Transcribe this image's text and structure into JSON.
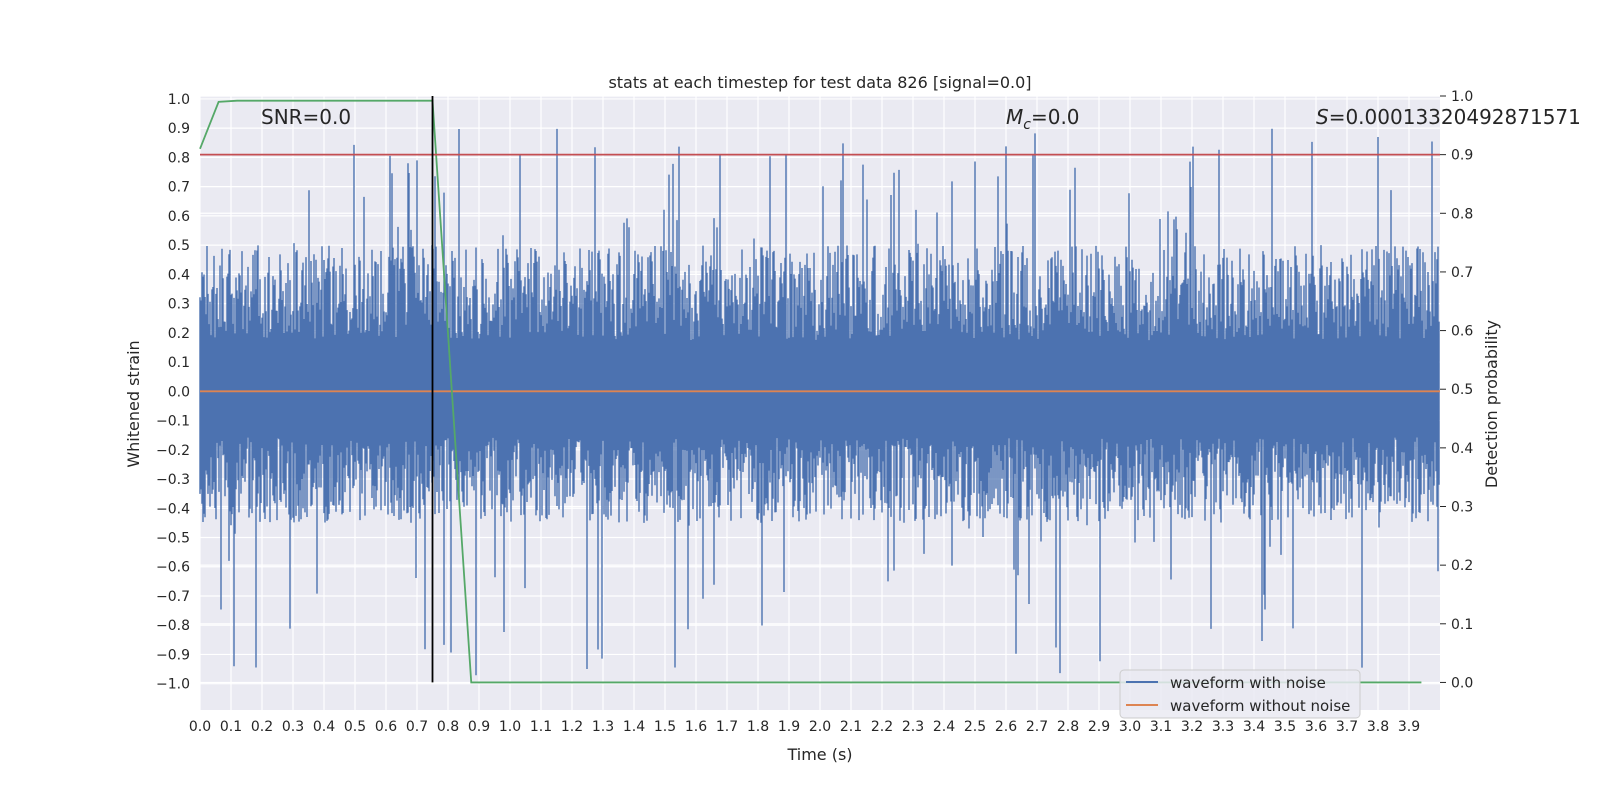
{
  "chart_data": {
    "type": "line",
    "title": "stats at each timestep for test data 826 [signal=0.0]",
    "xlabel": "Time (s)",
    "ylabel": "Whitened strain",
    "y2label": "Detection probability",
    "xlim": [
      0.0,
      4.0
    ],
    "ylim": [
      -1.09,
      1.01
    ],
    "y2lim": [
      -0.047,
      1.0
    ],
    "x_ticks": [
      "0.0",
      "0.1",
      "0.2",
      "0.3",
      "0.4",
      "0.5",
      "0.6",
      "0.7",
      "0.8",
      "0.9",
      "1.0",
      "1.1",
      "1.2",
      "1.3",
      "1.4",
      "1.5",
      "1.6",
      "1.7",
      "1.8",
      "1.9",
      "2.0",
      "2.1",
      "2.2",
      "2.3",
      "2.4",
      "2.5",
      "2.6",
      "2.7",
      "2.8",
      "2.9",
      "3.0",
      "3.1",
      "3.2",
      "3.3",
      "3.4",
      "3.5",
      "3.6",
      "3.7",
      "3.8",
      "3.9"
    ],
    "y_ticks": [
      "1.0",
      "0.9",
      "0.8",
      "0.7",
      "0.6",
      "0.5",
      "0.4",
      "0.3",
      "0.2",
      "0.1",
      "0.0",
      "−0.1",
      "−0.2",
      "−0.3",
      "−0.4",
      "−0.5",
      "−0.6",
      "−0.7",
      "−0.8",
      "−0.9",
      "−1.0"
    ],
    "y2_ticks": [
      "1.0",
      "0.9",
      "0.8",
      "0.7",
      "0.6",
      "0.5",
      "0.4",
      "0.3",
      "0.2",
      "0.1",
      "0.0"
    ],
    "annotations": {
      "snr": "SNR=0.0",
      "mc_sym": "M",
      "mc_sub": "c",
      "mc_val": "=0.0",
      "s_sym": "S",
      "s_val": "=0.00013320492871571"
    },
    "grid": true,
    "legend_position": "lower-right",
    "series": [
      {
        "name": "waveform with noise",
        "color": "#4c72b0",
        "axis": "left",
        "x_range": [
          0.0,
          4.0
        ],
        "approx_envelope": [
          -0.98,
          0.91
        ],
        "typical_band": [
          -0.45,
          0.5
        ]
      },
      {
        "name": "waveform without noise",
        "color": "#dd8452",
        "axis": "left",
        "x": [
          0.0,
          4.0
        ],
        "y": [
          0.0,
          0.0
        ]
      },
      {
        "name": "",
        "color": "#55a868",
        "axis": "right",
        "x": [
          0.0,
          0.06,
          0.12,
          0.25,
          0.5,
          0.75,
          0.875,
          1.0,
          2.0,
          3.0,
          3.94
        ],
        "y": [
          0.91,
          0.99,
          0.992,
          0.992,
          0.992,
          0.992,
          0.0,
          0.0,
          0.0,
          0.0,
          0.0
        ]
      },
      {
        "name": "",
        "color": "#c44e52",
        "axis": "right",
        "x": [
          0.0,
          4.0
        ],
        "y": [
          0.9,
          0.9
        ]
      },
      {
        "name": "",
        "color": "#000000",
        "axis": "right",
        "type": "vline",
        "x": [
          0.75,
          0.75
        ],
        "y": [
          0.0,
          1.0
        ]
      }
    ]
  }
}
